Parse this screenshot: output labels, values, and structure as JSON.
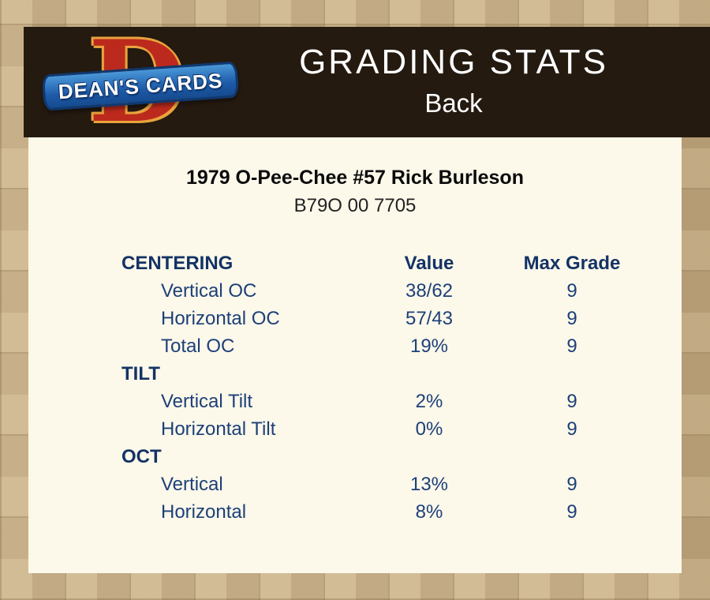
{
  "header": {
    "logo": {
      "letter": "D",
      "text": "DEAN'S CARDS"
    },
    "title": "GRADING STATS",
    "subtitle": "Back"
  },
  "card": {
    "title": "1979 O-Pee-Chee #57 Rick Burleson",
    "code": "B79O 00 7705"
  },
  "table": {
    "columns": [
      "Value",
      "Max Grade"
    ],
    "sections": [
      {
        "label": "CENTERING",
        "rows": [
          {
            "label": "Vertical OC",
            "value": "38/62",
            "max_grade": "9"
          },
          {
            "label": "Horizontal OC",
            "value": "57/43",
            "max_grade": "9"
          },
          {
            "label": "Total OC",
            "value": "19%",
            "max_grade": "9"
          }
        ]
      },
      {
        "label": "TILT",
        "rows": [
          {
            "label": "Vertical Tilt",
            "value": "2%",
            "max_grade": "9"
          },
          {
            "label": "Horizontal Tilt",
            "value": "0%",
            "max_grade": "9"
          }
        ]
      },
      {
        "label": "OCT",
        "rows": [
          {
            "label": "Vertical",
            "value": "13%",
            "max_grade": "9"
          },
          {
            "label": "Horizontal",
            "value": "8%",
            "max_grade": "9"
          }
        ]
      }
    ]
  },
  "colors": {
    "background_tan": "#c3ab84",
    "header_dark": "#241a10",
    "panel_cream": "#fcf8ea",
    "navy_header": "#143365",
    "navy_row": "#1d4078",
    "logo_red": "#bc2a1d",
    "logo_gold": "#e8a33d",
    "logo_blue": "#1d5aa8"
  }
}
